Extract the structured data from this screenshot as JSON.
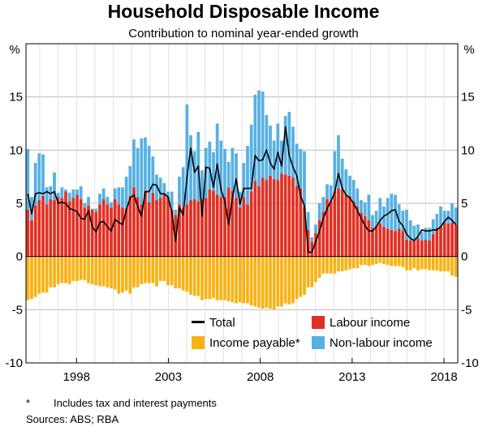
{
  "chart_data": {
    "type": "bar",
    "title": "Household Disposable Income",
    "subtitle": "Contribution to nominal year-ended growth",
    "unit_left": "%",
    "unit_right": "%",
    "ylim": [
      -10,
      20
    ],
    "yticks": [
      -10,
      -5,
      0,
      5,
      10,
      15
    ],
    "ytick_labels_left": [
      "-10",
      "-5",
      "0",
      "5",
      "10",
      "15"
    ],
    "ytick_labels_right": [
      "-10",
      "-5",
      "0",
      "5",
      "10",
      "15"
    ],
    "x_start_year": 1995.25,
    "x_end_year": 2018.75,
    "xtick_years": [
      1998,
      2003,
      2008,
      2013,
      2018
    ],
    "xtick_labels": [
      "1998",
      "2003",
      "2008",
      "2013",
      "2018"
    ],
    "legend": {
      "total": "Total",
      "labour": "Labour income",
      "payable": "Income payable*",
      "nonlabour": "Non-labour income"
    },
    "colors": {
      "labour": "#e03024",
      "nonlabour": "#56b0e2",
      "payable": "#f9b214",
      "total": "#000000"
    },
    "series": [
      {
        "name": "Labour income",
        "values": [
          4.4,
          3.4,
          4.8,
          5.3,
          5.7,
          4.9,
          5.4,
          5.3,
          5.6,
          5.5,
          6.1,
          5.2,
          5.5,
          5.8,
          5.4,
          4.6,
          4.8,
          4.4,
          4.2,
          4.9,
          5.4,
          4.9,
          4.6,
          5.4,
          4.9,
          4.6,
          4.5,
          5.7,
          6.5,
          5.6,
          4.9,
          6.2,
          5.1,
          6.0,
          5.3,
          5.5,
          5.9,
          5.6,
          4.4,
          3.9,
          4.9,
          4.6,
          4.9,
          5.3,
          5.4,
          5.2,
          5.4,
          5.5,
          6.3,
          6.2,
          5.8,
          5.6,
          5.6,
          6.5,
          6.2,
          5.5,
          4.6,
          5.6,
          4.9,
          6.1,
          7.1,
          6.6,
          7.4,
          7.2,
          7.6,
          7.3,
          7.2,
          7.8,
          7.7,
          7.6,
          7.4,
          6.6,
          6.4,
          4.6,
          2.5,
          1.4,
          2.2,
          3.4,
          4.2,
          5.4,
          5.2,
          6.1,
          6.4,
          6.3,
          5.8,
          5.7,
          5.2,
          4.7,
          4.1,
          3.8,
          3.4,
          2.7,
          2.9,
          3.1,
          2.8,
          2.6,
          2.5,
          2.4,
          2.6,
          2.4,
          1.6,
          1.5,
          1.6,
          1.7,
          1.5,
          1.6,
          1.5,
          2.1,
          2.7,
          2.8,
          3.2,
          3.1,
          3.2,
          3.0
        ]
      },
      {
        "name": "Non-labour income",
        "values": [
          5.7,
          2.2,
          4.0,
          4.4,
          3.9,
          1.6,
          1.2,
          2.6,
          0.4,
          1.0,
          0.2,
          0.8,
          0.8,
          0.5,
          1.2,
          0.4,
          0.8,
          0.1,
          0.3,
          1.0,
          1.0,
          0.7,
          0.5,
          1.0,
          1.6,
          1.9,
          3.0,
          2.8,
          4.5,
          4.6,
          6.2,
          5.0,
          5.3,
          3.4,
          2.4,
          1.9,
          1.0,
          0.5,
          1.7,
          0.5,
          2.6,
          3.8,
          9.4,
          6.1,
          4.5,
          6.5,
          2.7,
          4.7,
          4.5,
          3.6,
          6.7,
          5.3,
          4.5,
          2.4,
          4.0,
          4.2,
          1.5,
          3.2,
          5.5,
          6.3,
          8.1,
          9.0,
          8.1,
          6.1,
          4.7,
          3.6,
          5.3,
          3.1,
          5.5,
          6.0,
          4.8,
          4.0,
          3.7,
          5.3,
          1.7,
          0.4,
          0.8,
          1.6,
          1.4,
          1.4,
          1.5,
          3.8,
          5.0,
          2.9,
          2.4,
          1.9,
          2.0,
          1.7,
          1.2,
          1.3,
          2.4,
          1.2,
          1.4,
          2.4,
          1.9,
          2.9,
          3.4,
          3.4,
          2.3,
          1.9,
          2.8,
          1.9,
          1.3,
          1.3,
          0.8,
          1.1,
          1.2,
          1.4,
          1.3,
          1.9,
          1.1,
          1.2,
          1.8,
          1.6
        ]
      },
      {
        "name": "Income payable*",
        "values": [
          -4.1,
          -4.0,
          -3.8,
          -3.5,
          -3.4,
          -3.4,
          -2.9,
          -2.9,
          -2.6,
          -2.5,
          -2.5,
          -2.6,
          -2.3,
          -2.3,
          -2.2,
          -2.2,
          -2.5,
          -2.6,
          -2.7,
          -2.8,
          -2.8,
          -2.9,
          -3.0,
          -3.1,
          -3.5,
          -3.4,
          -3.2,
          -3.5,
          -2.9,
          -2.9,
          -2.6,
          -2.5,
          -2.5,
          -2.5,
          -2.8,
          -2.3,
          -2.3,
          -2.7,
          -2.7,
          -3.0,
          -3.0,
          -3.2,
          -3.3,
          -3.6,
          -3.7,
          -3.7,
          -4.1,
          -4.0,
          -4.0,
          -3.9,
          -4.1,
          -4.1,
          -4.1,
          -4.2,
          -4.3,
          -4.4,
          -4.3,
          -4.4,
          -4.4,
          -4.6,
          -4.7,
          -4.8,
          -4.9,
          -4.8,
          -4.9,
          -5.0,
          -4.7,
          -4.7,
          -4.4,
          -4.5,
          -4.4,
          -4.0,
          -3.8,
          -3.6,
          -2.9,
          -2.9,
          -2.4,
          -2.0,
          -1.6,
          -1.6,
          -1.6,
          -1.6,
          -1.4,
          -1.4,
          -1.3,
          -1.2,
          -1.1,
          -1.1,
          -0.8,
          -0.8,
          -0.9,
          -0.8,
          -0.7,
          -0.6,
          -0.7,
          -0.8,
          -0.9,
          -0.9,
          -0.9,
          -1.0,
          -1.3,
          -1.3,
          -1.1,
          -1.3,
          -1.2,
          -1.2,
          -1.3,
          -1.3,
          -1.3,
          -1.4,
          -1.4,
          -1.4,
          -1.8,
          -1.9
        ]
      },
      {
        "name": "Total",
        "values": [
          5.9,
          4.0,
          5.9,
          6.0,
          5.9,
          6.1,
          5.9,
          6.1,
          5.0,
          5.1,
          5.0,
          4.5,
          4.4,
          4.2,
          3.6,
          3.5,
          4.3,
          2.8,
          2.3,
          3.2,
          3.3,
          2.8,
          2.4,
          3.5,
          3.2,
          3.0,
          4.4,
          5.5,
          5.8,
          4.7,
          3.8,
          6.1,
          6.1,
          6.8,
          6.7,
          5.9,
          5.9,
          5.6,
          4.2,
          1.4,
          4.6,
          3.9,
          7.4,
          10.2,
          7.9,
          8.5,
          3.8,
          8.4,
          8.3,
          6.5,
          8.7,
          6.3,
          5.2,
          3.0,
          5.5,
          7.3,
          4.9,
          6.4,
          6.4,
          6.4,
          9.5,
          9.0,
          9.1,
          10.0,
          8.8,
          8.2,
          9.8,
          8.5,
          12.2,
          9.5,
          8.4,
          7.6,
          5.7,
          4.8,
          0.4,
          0.4,
          1.4,
          2.4,
          3.6,
          4.5,
          5.2,
          6.0,
          7.8,
          6.4,
          5.8,
          5.5,
          5.0,
          4.3,
          3.6,
          2.9,
          2.4,
          2.4,
          2.8,
          3.4,
          3.8,
          4.0,
          4.3,
          4.4,
          3.3,
          2.9,
          2.1,
          1.7,
          1.5,
          1.9,
          2.5,
          2.4,
          2.4,
          2.5,
          2.5,
          2.8,
          3.3,
          3.7,
          3.4,
          3.0
        ]
      }
    ]
  },
  "footnote": {
    "marker": "*",
    "text": "Includes tax and interest payments"
  },
  "sources": "Sources: ABS; RBA"
}
